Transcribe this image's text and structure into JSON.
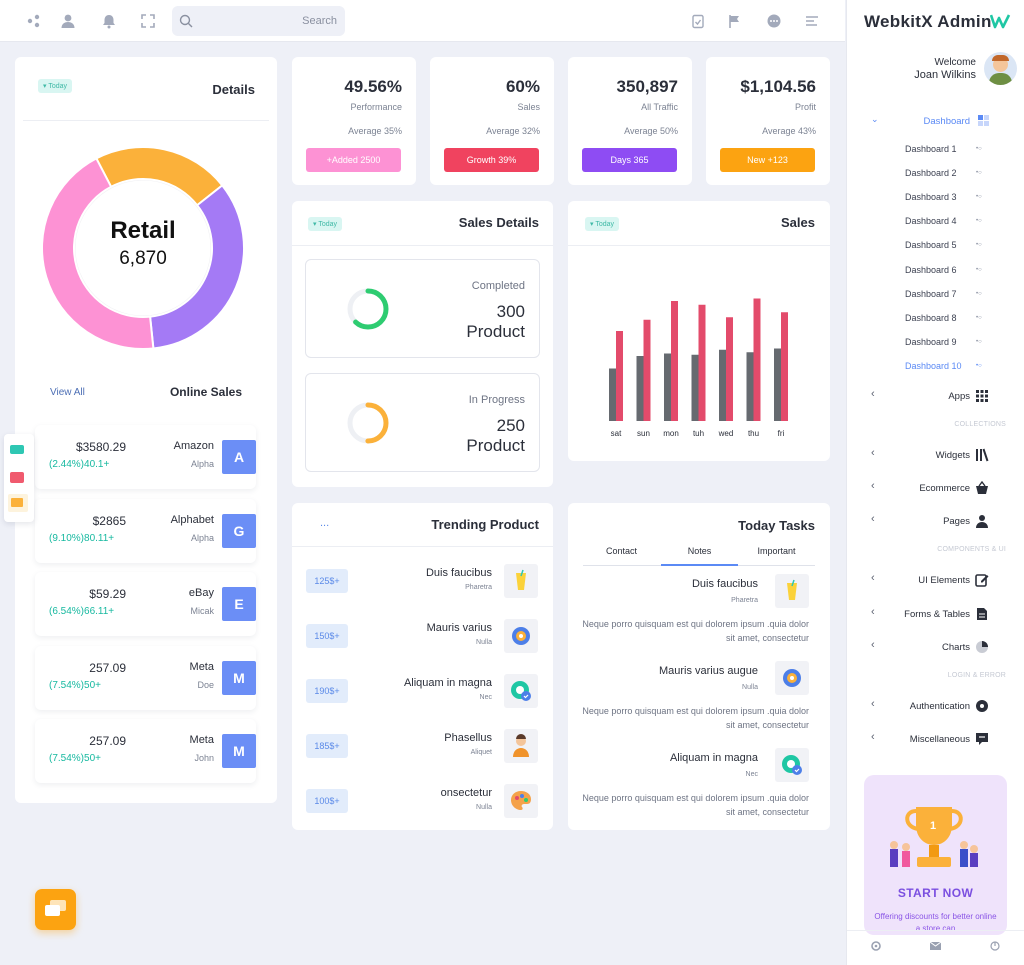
{
  "topbar": {
    "search_placeholder": "Search",
    "icons": [
      "share-icon",
      "user-icon",
      "bell-icon",
      "fullscreen-icon",
      "clipboard-icon",
      "flag-icon",
      "chat-icon",
      "menu-icon"
    ]
  },
  "details": {
    "badge": "Today",
    "title": "Details",
    "donut_label": "Retail",
    "donut_value": "6,870",
    "segments": [
      {
        "name": "orange",
        "color": "#fbb13a",
        "fraction": 0.22
      },
      {
        "name": "purple",
        "color": "#a47af5",
        "fraction": 0.34
      },
      {
        "name": "pink",
        "color": "#fd92d4",
        "fraction": 0.44
      }
    ]
  },
  "online_sales": {
    "view_all": "View All",
    "title": "Online Sales",
    "items": [
      {
        "amount": "$3580.29",
        "pct": "(2.44%)40.1+",
        "company": "Amazon",
        "sub": "Alpha",
        "initial": "A"
      },
      {
        "amount": "$2865",
        "pct": "(9.10%)80.11+",
        "company": "Alphabet",
        "sub": "Alpha",
        "initial": "G"
      },
      {
        "amount": "$59.29",
        "pct": "(6.54%)66.11+",
        "company": "eBay",
        "sub": "Micak",
        "initial": "E"
      },
      {
        "amount": "257.09",
        "pct": "(7.54%)50+",
        "company": "Meta",
        "sub": "Doe",
        "initial": "M"
      },
      {
        "amount": "257.09",
        "pct": "(7.54%)50+",
        "company": "Meta",
        "sub": "John",
        "initial": "M"
      }
    ]
  },
  "stats": [
    {
      "value": "49.56%",
      "label": "Performance",
      "avg": "Average 35%",
      "button": "+Added 2500",
      "color": "#fd92d4"
    },
    {
      "value": "60%",
      "label": "Sales",
      "avg": "Average 32%",
      "button": "Growth 39%",
      "color": "#f0435f"
    },
    {
      "value": "350,897",
      "label": "All Traffic",
      "avg": "Average 50%",
      "button": "Days 365",
      "color": "#8e4cf3"
    },
    {
      "value": "$1,104.56",
      "label": "Profit",
      "avg": "Average 43%",
      "button": "New +123",
      "color": "#fca311"
    }
  ],
  "sales_details": {
    "badge": "Today",
    "title": "Sales Details",
    "completed_label": "Completed",
    "completed_value": "300",
    "completed_unit": "Product",
    "completed_color": "#2ecc71",
    "completed_fraction": 0.62,
    "progress_label": "In Progress",
    "progress_value": "250",
    "progress_unit": "Product",
    "progress_color": "#fbb13a",
    "progress_fraction": 0.5
  },
  "sales_chart": {
    "badge": "Today",
    "title": "Sales"
  },
  "chart_data": {
    "type": "bar",
    "categories": [
      "sat",
      "sun",
      "mon",
      "tuh",
      "wed",
      "thu",
      "fri"
    ],
    "series": [
      {
        "values": [
          42,
          52,
          54,
          53,
          57,
          55,
          58
        ],
        "color": "#666a70"
      },
      {
        "values": [
          72,
          81,
          96,
          93,
          83,
          98,
          87
        ],
        "color": "#e34b6b"
      }
    ],
    "ylim": [
      0,
      100
    ]
  },
  "trending": {
    "dots": "...",
    "title": "Trending Product",
    "items": [
      {
        "price": "125$+",
        "name": "Duis faucibus",
        "sub": "Pharetra",
        "icon": "juice-icon"
      },
      {
        "price": "150$+",
        "name": "Mauris varius",
        "sub": "Nulla",
        "icon": "gear-badge-icon"
      },
      {
        "price": "190$+",
        "name": "Aliquam in magna",
        "sub": "Nec",
        "icon": "verified-gear-icon"
      },
      {
        "price": "185$+",
        "name": "Phasellus",
        "sub": "Aliquet",
        "icon": "person-icon"
      },
      {
        "price": "100$+",
        "name": "onsectetur",
        "sub": "Nulla",
        "icon": "palette-icon"
      }
    ]
  },
  "tasks": {
    "title": "Today Tasks",
    "tabs": [
      "Contact",
      "Notes",
      "Important"
    ],
    "active_tab": "Notes",
    "items": [
      {
        "name": "Duis faucibus",
        "sub": "Pharetra",
        "desc": "Neque porro quisquam est qui dolorem ipsum .quia dolor sit amet, consectetur",
        "icon": "juice-icon"
      },
      {
        "name": "Mauris varius augue",
        "sub": "Nulla",
        "desc": "Neque porro quisquam est qui dolorem ipsum .quia dolor sit amet, consectetur",
        "icon": "gear-badge-icon"
      },
      {
        "name": "Aliquam in magna",
        "sub": "Nec",
        "desc": "Neque porro quisquam est qui dolorem ipsum .quia dolor sit amet, consectetur",
        "icon": "verified-gear-icon"
      }
    ]
  },
  "sidebar": {
    "brand": "WebkitX Admin",
    "welcome": "Welcome",
    "user": "Joan Wilkins",
    "dashboard_label": "Dashboard",
    "dashboard_items": [
      "Dashboard 1",
      "Dashboard 2",
      "Dashboard 3",
      "Dashboard 4",
      "Dashboard 5",
      "Dashboard 6",
      "Dashboard 7",
      "Dashboard 8",
      "Dashboard 9",
      "Dashboard 10"
    ],
    "active_item": "Dashboard 10",
    "apps": "Apps",
    "sec_collections": "COLLECTIONS",
    "widgets": "Widgets",
    "ecommerce": "Ecommerce",
    "pages": "Pages",
    "sec_components": "COMPONENTS & UI",
    "ui_elements": "UI Elements",
    "forms_tables": "Forms & Tables",
    "charts": "Charts",
    "sec_login": "LOGIN & ERROR",
    "authentication": "Authentication",
    "miscellaneous": "Miscellaneous",
    "promo_title": "START NOW",
    "promo_text": "Offering discounts for better online a store can",
    "promo_value": "1",
    "accent": "#5b8af5"
  }
}
